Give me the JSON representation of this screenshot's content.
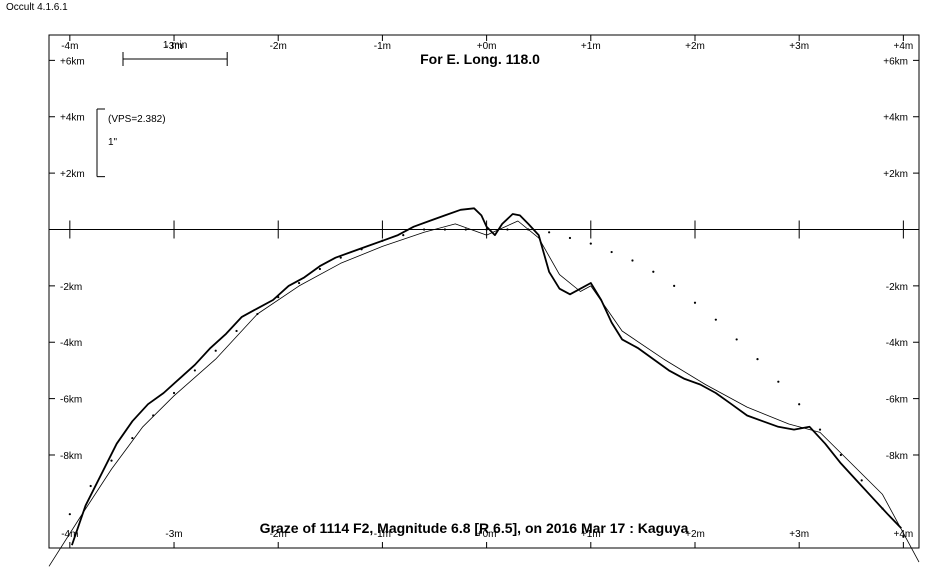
{
  "app": {
    "title": "Occult 4.1.6.1"
  },
  "chart_data": {
    "type": "line",
    "title": "For E. Long. 118.0",
    "subtitle": "Graze of  1114 F2,  Magnitude 6.8 [R 6.5],  on 2016 Mar 17  :  Kaguya",
    "xlim": [
      -4.2,
      4.15
    ],
    "ylim": [
      -11.3,
      6.9
    ],
    "x_unit_label": "m",
    "y_unit_label": "km",
    "x_ticks": [
      {
        "value": -4,
        "label": "-4m"
      },
      {
        "value": -3,
        "label": "-3m"
      },
      {
        "value": -2,
        "label": "-2m"
      },
      {
        "value": -1,
        "label": "-1m"
      },
      {
        "value": 0,
        "label": "+0m"
      },
      {
        "value": 1,
        "label": "+1m"
      },
      {
        "value": 2,
        "label": "+2m"
      },
      {
        "value": 3,
        "label": "+3m"
      },
      {
        "value": 4,
        "label": "+4m"
      }
    ],
    "y_ticks_top": [
      {
        "value": 6,
        "label": "+6km"
      },
      {
        "value": 4,
        "label": "+4km"
      },
      {
        "value": 2,
        "label": "+2km"
      }
    ],
    "y_ticks_bottom": [
      {
        "value": -2,
        "label": "-2km"
      },
      {
        "value": -4,
        "label": "-4km"
      },
      {
        "value": -6,
        "label": "-6km"
      },
      {
        "value": -8,
        "label": "-8km"
      }
    ],
    "scale_bar": {
      "label": "1 min",
      "length": 1
    },
    "vertical_scale": {
      "label": "(VPS=2.382)",
      "unit": "1\"",
      "length_km": 2.4
    },
    "series": [
      {
        "style": "profile",
        "x": [
          -3.98,
          -3.85,
          -3.7,
          -3.55,
          -3.4,
          -3.25,
          -3.1,
          -2.95,
          -2.8,
          -2.65,
          -2.5,
          -2.35,
          -2.2,
          -2.05,
          -1.9,
          -1.75,
          -1.6,
          -1.45,
          -1.3,
          -1.15,
          -1.0,
          -0.85,
          -0.7,
          -0.55,
          -0.4,
          -0.25,
          -0.12,
          -0.05,
          0.0,
          0.08,
          0.15,
          0.25,
          0.32,
          0.4,
          0.5,
          0.6,
          0.7,
          0.8,
          0.9,
          1.0,
          1.1,
          1.2,
          1.3,
          1.45,
          1.6,
          1.75,
          1.9,
          2.05,
          2.2,
          2.35,
          2.5,
          2.65,
          2.8,
          2.95,
          3.1,
          3.25,
          3.4,
          3.55,
          3.7,
          3.85,
          3.98
        ],
        "y": [
          -11.2,
          -9.8,
          -8.7,
          -7.6,
          -6.8,
          -6.2,
          -5.8,
          -5.3,
          -4.8,
          -4.2,
          -3.7,
          -3.1,
          -2.8,
          -2.5,
          -2.0,
          -1.7,
          -1.3,
          -1.0,
          -0.8,
          -0.6,
          -0.4,
          -0.2,
          0.1,
          0.3,
          0.5,
          0.7,
          0.75,
          0.5,
          0.1,
          -0.2,
          0.2,
          0.55,
          0.5,
          0.2,
          -0.2,
          -1.5,
          -2.1,
          -2.3,
          -2.1,
          -1.9,
          -2.5,
          -3.3,
          -3.9,
          -4.2,
          -4.6,
          -5.0,
          -5.3,
          -5.5,
          -5.8,
          -6.2,
          -6.6,
          -6.8,
          -7.0,
          -7.1,
          -7.0,
          -7.6,
          -8.3,
          -8.9,
          -9.5,
          -10.1,
          -10.6
        ]
      },
      {
        "style": "smooth",
        "x": [
          -4.2,
          -3.9,
          -3.6,
          -3.3,
          -3.0,
          -2.6,
          -2.2,
          -1.8,
          -1.4,
          -1.0,
          -0.6,
          -0.3,
          0.0,
          0.3,
          0.5,
          0.7,
          0.9,
          1.0,
          1.3,
          1.7,
          2.1,
          2.5,
          2.9,
          3.2,
          3.5,
          3.8,
          4.15
        ],
        "y": [
          -11.95,
          -10.2,
          -8.5,
          -7.0,
          -5.9,
          -4.6,
          -3.0,
          -2.0,
          -1.2,
          -0.6,
          -0.1,
          0.2,
          -0.2,
          0.3,
          -0.3,
          -1.6,
          -2.2,
          -2.0,
          -3.6,
          -4.6,
          -5.5,
          -6.3,
          -6.9,
          -7.2,
          -8.3,
          -9.4,
          -11.8
        ]
      },
      {
        "style": "dotted",
        "x": [
          -4.0,
          -3.8,
          -3.6,
          -3.4,
          -3.2,
          -3.0,
          -2.8,
          -2.6,
          -2.4,
          -2.2,
          -2.0,
          -1.8,
          -1.6,
          -1.4,
          -1.2,
          -1.0,
          -0.8,
          -0.6,
          -0.4,
          -0.2,
          0.0,
          0.2,
          0.4,
          0.6,
          0.8,
          1.0,
          1.2,
          1.4,
          1.6,
          1.8,
          2.0,
          2.2,
          2.4,
          2.6,
          2.8,
          3.0,
          3.2,
          3.4,
          3.6,
          3.8,
          4.0
        ],
        "y": [
          -10.1,
          -9.1,
          -8.2,
          -7.4,
          -6.6,
          -5.8,
          -5.0,
          -4.3,
          -3.6,
          -3.0,
          -2.4,
          -1.9,
          -1.4,
          -1.0,
          -0.7,
          -0.4,
          -0.2,
          0.0,
          0.0,
          0.0,
          0.0,
          0.0,
          0.0,
          -0.1,
          -0.3,
          -0.5,
          -0.8,
          -1.1,
          -1.5,
          -2.0,
          -2.6,
          -3.2,
          -3.9,
          -4.6,
          -5.4,
          -6.2,
          -7.1,
          -8.0,
          -8.9,
          -9.9,
          -10.9
        ]
      }
    ]
  }
}
